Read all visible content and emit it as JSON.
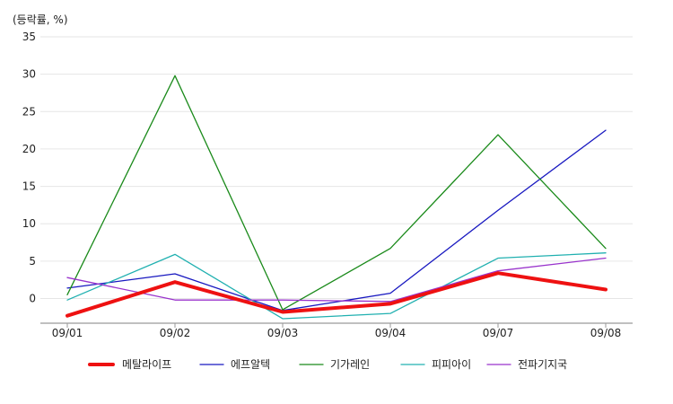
{
  "chart_data": {
    "type": "line",
    "unit_label": "(등락률, %)",
    "categories": [
      "09/01",
      "09/02",
      "09/03",
      "09/04",
      "09/07",
      "09/08"
    ],
    "ylim": [
      -3.5,
      35
    ],
    "yticks": [
      0,
      5,
      10,
      15,
      20,
      25,
      30,
      35
    ],
    "grid": true,
    "legend_position": "bottom",
    "series": [
      {
        "name": "메탈라이프",
        "color": "#ee1111",
        "emphasis": true,
        "values": [
          -2.3,
          2.2,
          -1.8,
          -0.7,
          3.4,
          1.2
        ]
      },
      {
        "name": "에프알텍",
        "color": "#1818c0",
        "values": [
          1.4,
          3.3,
          -1.6,
          0.7,
          11.8,
          22.5
        ]
      },
      {
        "name": "기가레인",
        "color": "#1a8a1a",
        "values": [
          0.5,
          29.8,
          -1.5,
          6.7,
          21.9,
          6.7
        ]
      },
      {
        "name": "피피아이",
        "color": "#20b0b0",
        "values": [
          -0.2,
          5.9,
          -2.7,
          -2.0,
          5.4,
          6.1
        ]
      },
      {
        "name": "전파기지국",
        "color": "#9933cc",
        "values": [
          2.8,
          -0.2,
          -0.2,
          -0.4,
          3.7,
          5.4
        ]
      }
    ]
  }
}
